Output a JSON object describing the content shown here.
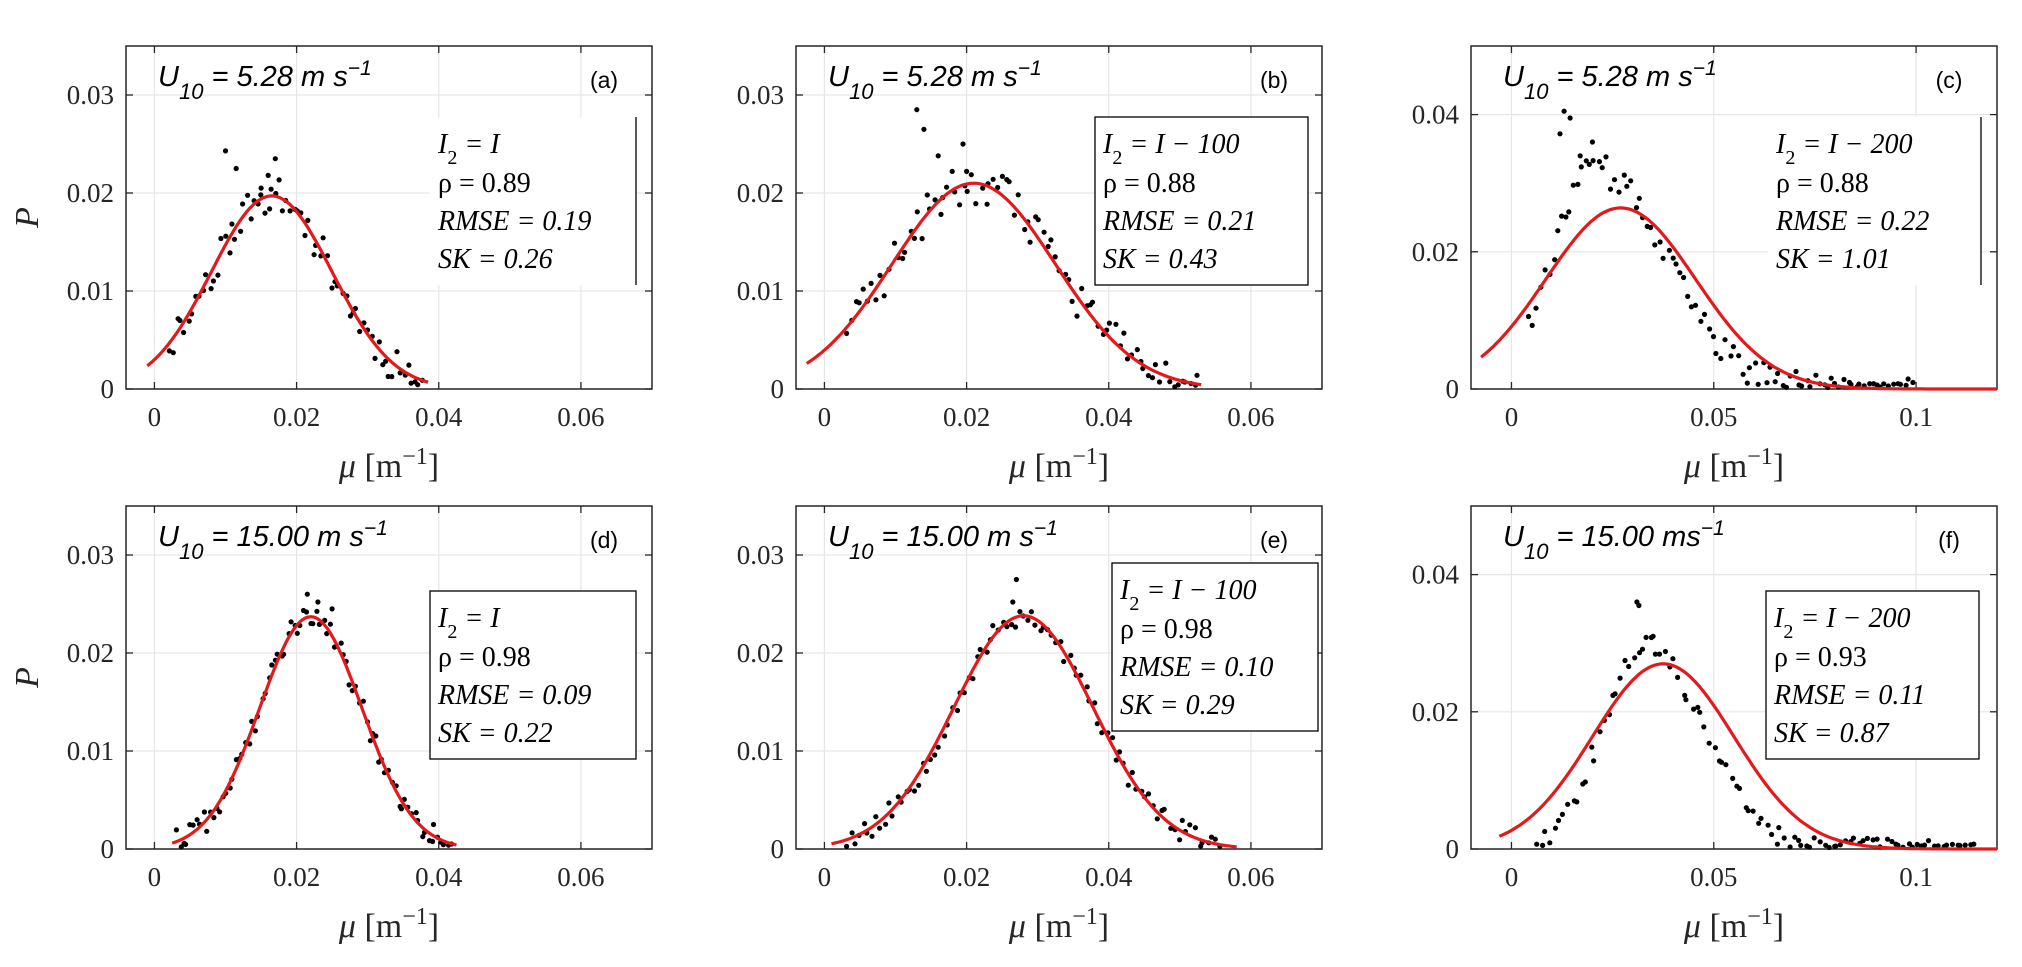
{
  "chart_data": [
    {
      "type": "scatter+line",
      "panel": "(a)",
      "title": "U10 = 5.28 m s−1",
      "title_parts": {
        "base": "U",
        "sub": "10",
        "eq": " = 5.28 m s",
        "sup": "−1"
      },
      "xlabel": {
        "symbol": "μ",
        "unit": "[m",
        "sup": "−1",
        "close": "]"
      },
      "ylabel": "P",
      "xlim": [
        -0.004,
        0.07
      ],
      "ylim": [
        0,
        0.035
      ],
      "xticks": [
        0,
        0.02,
        0.04,
        0.06
      ],
      "xticklabels": [
        "0",
        "0.02",
        "0.04",
        "0.06"
      ],
      "yticks": [
        0,
        0.01,
        0.02,
        0.03
      ],
      "yticklabels": [
        "0",
        "0.01",
        "0.02",
        "0.03"
      ],
      "annotation": {
        "line1": "I2 = I",
        "l1_lhs": "I",
        "l1_sub": "2",
        "l1_rhs": " = I",
        "rho": "ρ = 0.89",
        "rmse": "RMSE = 0.19",
        "sk": "SK = 0.26"
      },
      "fit": {
        "model": "gaussian",
        "mean": 0.0165,
        "sd": 0.0085,
        "peak": 0.0197,
        "x_start": -0.001,
        "x_end": 0.0385
      },
      "scatter_range": [
        0.002,
        0.038
      ],
      "scatter_n": 70,
      "scatter_noise": 0.0018,
      "seed": 11,
      "scatter_extra": [
        [
          0.01,
          0.0243
        ],
        [
          0.0115,
          0.0225
        ],
        [
          0.015,
          0.0205
        ],
        [
          0.017,
          0.0235
        ],
        [
          0.016,
          0.0218
        ]
      ]
    },
    {
      "type": "scatter+line",
      "panel": "(b)",
      "title": "U10 = 5.28 m s−1",
      "title_parts": {
        "base": "U",
        "sub": "10",
        "eq": " = 5.28 m s",
        "sup": "−1"
      },
      "xlabel": {
        "symbol": "μ",
        "unit": "[m",
        "sup": "−1",
        "close": "]"
      },
      "ylabel": "",
      "xlim": [
        -0.004,
        0.07
      ],
      "ylim": [
        0,
        0.035
      ],
      "xticks": [
        0,
        0.02,
        0.04,
        0.06
      ],
      "xticklabels": [
        "0",
        "0.02",
        "0.04",
        "0.06"
      ],
      "yticks": [
        0,
        0.01,
        0.02,
        0.03
      ],
      "yticklabels": [
        "0",
        "0.01",
        "0.02",
        "0.03"
      ],
      "annotation": {
        "line1": "I2 = I − 100",
        "l1_lhs": "I",
        "l1_sub": "2",
        "l1_rhs": " = I − 100",
        "rho": "ρ = 0.88",
        "rmse": "RMSE = 0.21",
        "sk": "SK = 0.43"
      },
      "fit": {
        "model": "gaussian",
        "mean": 0.021,
        "sd": 0.0115,
        "peak": 0.021,
        "x_start": -0.0025,
        "x_end": 0.053
      },
      "scatter_range": [
        0.003,
        0.053
      ],
      "scatter_n": 85,
      "scatter_noise": 0.0022,
      "seed": 23,
      "scatter_extra": [
        [
          0.013,
          0.0285
        ],
        [
          0.014,
          0.0265
        ],
        [
          0.0195,
          0.025
        ],
        [
          0.016,
          0.0238
        ],
        [
          0.02,
          0.0222
        ]
      ]
    },
    {
      "type": "scatter+line",
      "panel": "(c)",
      "title": "U10 = 5.28 m s−1",
      "title_parts": {
        "base": "U",
        "sub": "10",
        "eq": " = 5.28 m s",
        "sup": "−1"
      },
      "xlabel": {
        "symbol": "μ",
        "unit": "[m",
        "sup": "−1",
        "close": "]"
      },
      "ylabel": "",
      "xlim": [
        -0.01,
        0.12
      ],
      "ylim": [
        0,
        0.05
      ],
      "xticks": [
        0,
        0.05,
        0.1
      ],
      "xticklabels": [
        "0",
        "0.05",
        "0.1"
      ],
      "yticks": [
        0,
        0.02,
        0.04
      ],
      "yticklabels": [
        "0",
        "0.02",
        "0.04"
      ],
      "annotation": {
        "line1": "I2 = I − 200",
        "l1_lhs": "I",
        "l1_sub": "2",
        "l1_rhs": " = I − 200",
        "rho": "ρ = 0.88",
        "rmse": "RMSE = 0.22",
        "sk": "SK = 1.01"
      },
      "fit": {
        "model": "gaussian",
        "mean": 0.027,
        "sd": 0.0185,
        "peak": 0.0264,
        "x_start": -0.0075,
        "x_end": 0.12
      },
      "scatter_range": [
        0.004,
        0.1
      ],
      "scatter_n": 95,
      "scatter_noise": 0.0022,
      "seed": 37,
      "scatter_shape": {
        "mean": 0.021,
        "sd_left": 0.011,
        "sd_right": 0.017,
        "peak": 0.032
      },
      "scatter_extra": [
        [
          0.013,
          0.0405
        ],
        [
          0.0145,
          0.0395
        ],
        [
          0.02,
          0.036
        ],
        [
          0.012,
          0.0372
        ],
        [
          0.017,
          0.034
        ]
      ]
    },
    {
      "type": "scatter+line",
      "panel": "(d)",
      "title": "U10 = 15.00 m s−1",
      "title_parts": {
        "base": "U",
        "sub": "10",
        "eq": " = 15.00 m s",
        "sup": "−1"
      },
      "xlabel": {
        "symbol": "μ",
        "unit": "[m",
        "sup": "−1",
        "close": "]"
      },
      "ylabel": "P",
      "xlim": [
        -0.004,
        0.07
      ],
      "ylim": [
        0,
        0.035
      ],
      "xticks": [
        0,
        0.02,
        0.04,
        0.06
      ],
      "xticklabels": [
        "0",
        "0.02",
        "0.04",
        "0.06"
      ],
      "yticks": [
        0,
        0.01,
        0.02,
        0.03
      ],
      "yticklabels": [
        "0",
        "0.01",
        "0.02",
        "0.03"
      ],
      "annotation": {
        "line1": "I2 = I",
        "l1_lhs": "I",
        "l1_sub": "2",
        "l1_rhs": " = I",
        "rho": "ρ = 0.98",
        "rmse": "RMSE = 0.09",
        "sk": "SK = 0.22"
      },
      "fit": {
        "model": "gaussian",
        "mean": 0.022,
        "sd": 0.0072,
        "peak": 0.0237,
        "x_start": 0.0025,
        "x_end": 0.0425
      },
      "scatter_range": [
        0.003,
        0.042
      ],
      "scatter_n": 85,
      "scatter_noise": 0.0012,
      "seed": 41,
      "scatter_extra": [
        [
          0.0215,
          0.026
        ],
        [
          0.025,
          0.0245
        ],
        [
          0.023,
          0.0252
        ]
      ]
    },
    {
      "type": "scatter+line",
      "panel": "(e)",
      "title": "U10 = 15.00 m s−1",
      "title_parts": {
        "base": "U",
        "sub": "10",
        "eq": " = 15.00 m s",
        "sup": "−1"
      },
      "xlabel": {
        "symbol": "μ",
        "unit": "[m",
        "sup": "−1",
        "close": "]"
      },
      "ylabel": "",
      "xlim": [
        -0.004,
        0.07
      ],
      "ylim": [
        0,
        0.035
      ],
      "xticks": [
        0,
        0.02,
        0.04,
        0.06
      ],
      "xticklabels": [
        "0",
        "0.02",
        "0.04",
        "0.06"
      ],
      "yticks": [
        0,
        0.01,
        0.02,
        0.03
      ],
      "yticklabels": [
        "0",
        "0.01",
        "0.02",
        "0.03"
      ],
      "annotation": {
        "line1": "I2 = I − 100",
        "l1_lhs": "I",
        "l1_sub": "2",
        "l1_rhs": " = I − 100",
        "rho": "ρ = 0.98",
        "rmse": "RMSE = 0.10",
        "sk": "SK = 0.29"
      },
      "fit": {
        "model": "gaussian",
        "mean": 0.028,
        "sd": 0.0098,
        "peak": 0.0238,
        "x_start": 0.001,
        "x_end": 0.058
      },
      "scatter_range": [
        0.003,
        0.056
      ],
      "scatter_n": 90,
      "scatter_noise": 0.0012,
      "seed": 53,
      "scatter_extra": [
        [
          0.027,
          0.0275
        ],
        [
          0.0265,
          0.0252
        ]
      ]
    },
    {
      "type": "scatter+line",
      "panel": "(f)",
      "title": "U10 = 15.00 ms−1",
      "title_parts": {
        "base": "U",
        "sub": "10",
        "eq": " = 15.00 ms",
        "sup": "−1"
      },
      "xlabel": {
        "symbol": "μ",
        "unit": "[m",
        "sup": "−1",
        "close": "]"
      },
      "ylabel": "",
      "xlim": [
        -0.01,
        0.12
      ],
      "ylim": [
        0,
        0.05
      ],
      "xticks": [
        0,
        0.05,
        0.1
      ],
      "xticklabels": [
        "0",
        "0.05",
        "0.1"
      ],
      "yticks": [
        0,
        0.02,
        0.04
      ],
      "yticklabels": [
        "0",
        "0.02",
        "0.04"
      ],
      "annotation": {
        "line1": "I2 = I − 200",
        "l1_lhs": "I",
        "l1_sub": "2",
        "l1_rhs": " = I − 200",
        "rho": "ρ = 0.93",
        "rmse": "RMSE = 0.11",
        "sk": "SK = 0.87"
      },
      "fit": {
        "model": "gaussian",
        "mean": 0.0375,
        "sd": 0.0175,
        "peak": 0.027,
        "x_start": -0.003,
        "x_end": 0.12
      },
      "scatter_range": [
        0.006,
        0.115
      ],
      "scatter_n": 100,
      "scatter_noise": 0.0016,
      "seed": 67,
      "scatter_shape": {
        "mean": 0.033,
        "sd_left": 0.0105,
        "sd_right": 0.014,
        "peak": 0.03
      },
      "scatter_extra": [
        [
          0.031,
          0.036
        ],
        [
          0.0315,
          0.0355
        ],
        [
          0.035,
          0.031
        ]
      ]
    }
  ],
  "colors": {
    "fit_line": "#e31a1c",
    "points": "#000000",
    "axes": "#262626",
    "grid": "#e6e6e6"
  }
}
